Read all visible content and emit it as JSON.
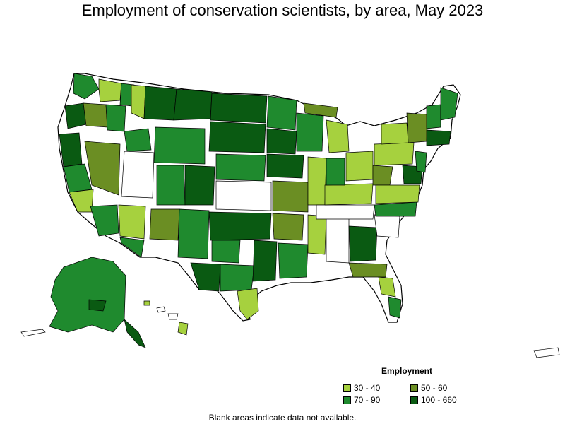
{
  "title": "Employment of conservation scientists, by area, May 2023",
  "legend": {
    "title": "Employment",
    "items": [
      {
        "label": "30 - 40",
        "color": "#a6d13e"
      },
      {
        "label": "50 - 60",
        "color": "#6b8e23"
      },
      {
        "label": "70 - 90",
        "color": "#1f8a2e"
      },
      {
        "label": "100 - 660",
        "color": "#0a5a12"
      }
    ]
  },
  "note": "Blank areas indicate data not available.",
  "colors": {
    "blank": "#ffffff",
    "border": "#000000"
  }
}
